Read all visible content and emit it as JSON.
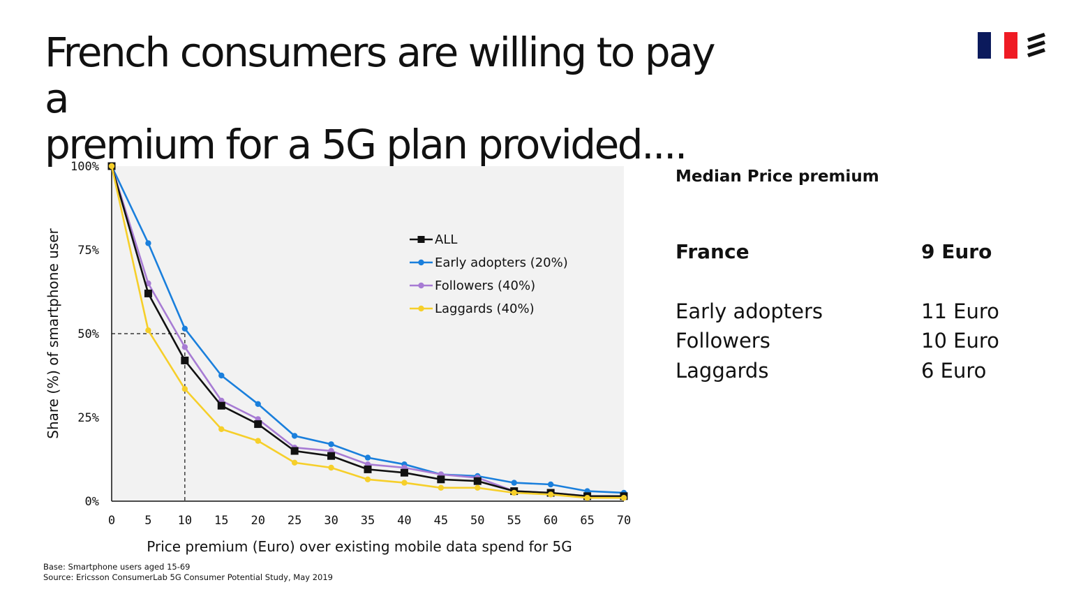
{
  "title_lines": [
    "French consumers are willing to pay a",
    "premium for a 5G plan provided...."
  ],
  "flag_colors": [
    "#0b1a5c",
    "#ffffff",
    "#ef1b24"
  ],
  "logo": "ericsson-logo-icon",
  "side": {
    "title": "Median Price premium",
    "headline": {
      "label": "France",
      "value": "9 Euro"
    },
    "rows": [
      {
        "label": "Early adopters",
        "value": "11 Euro"
      },
      {
        "label": "Followers",
        "value": "10 Euro"
      },
      {
        "label": "Laggards",
        "value": "6 Euro"
      }
    ]
  },
  "footnotes": {
    "base": "Base: Smartphone users aged 15-69",
    "source": "Source: Ericsson ConsumerLab 5G Consumer Potential Study, May 2019"
  },
  "chart_data": {
    "type": "line",
    "xlabel": "Price premium (Euro) over existing mobile data spend for 5G",
    "ylabel": "Share (%) of smartphone user",
    "x": [
      0,
      5,
      10,
      15,
      20,
      25,
      30,
      35,
      40,
      45,
      50,
      55,
      60,
      65,
      70
    ],
    "xlim": [
      0,
      70
    ],
    "ylim": [
      0,
      100
    ],
    "yticks": [
      0,
      25,
      50,
      75,
      100
    ],
    "ytick_labels": [
      "0%",
      "25%",
      "50%",
      "75%",
      "100%"
    ],
    "grid": false,
    "plot_background": "#f2f2f2",
    "legend_position": "upper-right-center",
    "reference_lines": {
      "x": 10,
      "y": 50,
      "style": "dashed"
    },
    "series": [
      {
        "name": "ALL",
        "color": "#111111",
        "marker": "square",
        "values": [
          100,
          62,
          42,
          28.5,
          23,
          15,
          13.5,
          9.5,
          8.5,
          6.5,
          6,
          3,
          2.5,
          1.5,
          1.5
        ]
      },
      {
        "name": "Early adopters (20%)",
        "color": "#1a7fdc",
        "marker": "circle",
        "values": [
          100,
          77,
          51.5,
          37.5,
          29,
          19.5,
          17,
          13,
          11,
          8,
          7.5,
          5.5,
          5,
          3,
          2.5
        ]
      },
      {
        "name": "Followers (40%)",
        "color": "#a77bd4",
        "marker": "circle",
        "values": [
          100,
          65,
          46,
          30,
          24.5,
          16,
          15,
          11,
          10,
          8,
          7,
          3,
          2.5,
          1.5,
          1.5
        ]
      },
      {
        "name": "Laggards (40%)",
        "color": "#f6cf2a",
        "marker": "circle",
        "values": [
          100,
          51,
          33.5,
          21.5,
          18,
          11.5,
          10,
          6.5,
          5.5,
          4,
          4,
          2.5,
          2,
          1,
          1
        ]
      }
    ]
  }
}
